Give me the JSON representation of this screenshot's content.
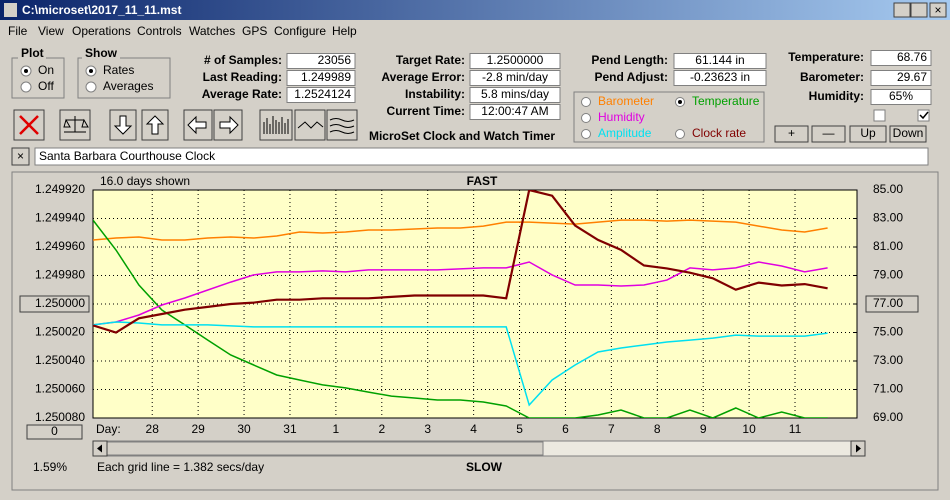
{
  "window": {
    "title": "C:\\microset\\2017_11_11.mst"
  },
  "menu": [
    "File",
    "View",
    "Operations",
    "Controls",
    "Watches",
    "GPS",
    "Configure",
    "Help"
  ],
  "plot_group": {
    "title": "Plot",
    "options": [
      "On",
      "Off"
    ]
  },
  "show_group": {
    "title": "Show",
    "options": [
      "Rates",
      "Averages"
    ]
  },
  "fields": [
    {
      "label": "# of Samples:",
      "value": "23056"
    },
    {
      "label": "Last Reading:",
      "value": "1.249989"
    },
    {
      "label": "Average Rate:",
      "value": "1.2524124"
    },
    {
      "label": "Target Rate:",
      "value": "1.2500000"
    },
    {
      "label": "Average Error:",
      "value": "-2.8 min/day"
    },
    {
      "label": "Instability:",
      "value": "5.8 mins/day"
    },
    {
      "label": "Current Time:",
      "value": "12:00:47 AM"
    },
    {
      "label": "Pend Length:",
      "value": "61.144 in"
    },
    {
      "label": "Pend Adjust:",
      "value": "-0.23623 in"
    },
    {
      "label": "Temperature:",
      "value": "68.76"
    },
    {
      "label": "Barometer:",
      "value": "29.67"
    },
    {
      "label": "Humidity:",
      "value": "65%"
    }
  ],
  "app_name": "MicroSet Clock and Watch Timer",
  "buttons": [
    "+",
    "—",
    "Up",
    "Down"
  ],
  "clock_name": "Santa Barbara Courthouse Clock",
  "chart_data": {
    "type": "line",
    "days_shown": "16.0 days shown",
    "top_label": "FAST",
    "bottom_label": "SLOW",
    "x_label": "Day:",
    "grid_note": "Each grid line = 1.382 secs/day",
    "zoom_button": "0",
    "percent": "1.59%",
    "grid": true,
    "xlim": [
      0,
      16.64
    ],
    "xticks": [
      {
        "value": 1.29,
        "label": "28"
      },
      {
        "value": 2.29,
        "label": "29"
      },
      {
        "value": 3.29,
        "label": "30"
      },
      {
        "value": 4.29,
        "label": "31"
      },
      {
        "value": 5.29,
        "label": "1"
      },
      {
        "value": 6.29,
        "label": "2"
      },
      {
        "value": 7.29,
        "label": "3"
      },
      {
        "value": 8.29,
        "label": "4"
      },
      {
        "value": 9.29,
        "label": "5"
      },
      {
        "value": 10.29,
        "label": "6"
      },
      {
        "value": 11.29,
        "label": "7"
      },
      {
        "value": 12.29,
        "label": "8"
      },
      {
        "value": 13.29,
        "label": "9"
      },
      {
        "value": 14.29,
        "label": "10"
      },
      {
        "value": 15.29,
        "label": "11"
      }
    ],
    "ylim": [
      1.25008,
      1.24992
    ],
    "yticks": [
      {
        "value": 1.24992,
        "label": "1.249920"
      },
      {
        "value": 1.24994,
        "label": "1.249940"
      },
      {
        "value": 1.24996,
        "label": "1.249960"
      },
      {
        "value": 1.24998,
        "label": "1.249980"
      },
      {
        "value": 1.25,
        "label": "1.250000"
      },
      {
        "value": 1.25002,
        "label": "1.250020"
      },
      {
        "value": 1.25004,
        "label": "1.250040"
      },
      {
        "value": 1.25006,
        "label": "1.250060"
      },
      {
        "value": 1.25008,
        "label": "1.250080"
      }
    ],
    "y2lim": [
      69,
      85
    ],
    "y2ticks": [
      {
        "value": 85,
        "label": "85.00"
      },
      {
        "value": 83,
        "label": "83.00"
      },
      {
        "value": 81,
        "label": "81.00"
      },
      {
        "value": 79,
        "label": "79.00"
      },
      {
        "value": 77,
        "label": "77.00"
      },
      {
        "value": 75,
        "label": "75.00"
      },
      {
        "value": 73,
        "label": "73.00"
      },
      {
        "value": 71,
        "label": "71.00"
      },
      {
        "value": 69,
        "label": "69.00"
      }
    ],
    "x": [
      0,
      0.5,
      1,
      1.5,
      2,
      2.5,
      3,
      3.5,
      4,
      4.5,
      5,
      5.5,
      6,
      6.5,
      7,
      7.5,
      8,
      8.5,
      9,
      9.5,
      10,
      10.5,
      11,
      11.5,
      12,
      12.5,
      13,
      13.5,
      14,
      14.5,
      15,
      15.5,
      16
    ],
    "series": [
      {
        "name": "Barometer",
        "color": "#ff8000",
        "axis": "y2",
        "values": [
          81.49,
          81.63,
          81.7,
          81.49,
          81.49,
          81.63,
          81.7,
          81.63,
          81.77,
          82.05,
          81.98,
          82.05,
          82.19,
          82.19,
          82.26,
          82.33,
          82.33,
          82.47,
          82.75,
          82.75,
          82.68,
          82.61,
          82.75,
          82.89,
          82.89,
          82.82,
          82.89,
          82.82,
          82.75,
          82.47,
          82.19,
          82.05,
          82.33
        ]
      },
      {
        "name": "Temperature",
        "color": "#00a000",
        "axis": "y2",
        "values": [
          82.89,
          80.79,
          78.33,
          76.58,
          75.53,
          74.47,
          73.42,
          72.72,
          72.02,
          71.67,
          71.32,
          71.11,
          70.82,
          70.54,
          70.4,
          70.26,
          70.26,
          70.12,
          69.84,
          69.0,
          69.0,
          69.0,
          69.21,
          69.56,
          69.0,
          69.0,
          69.56,
          69.0,
          69.7,
          69.0,
          69.42,
          69.0,
          69.0
        ]
      },
      {
        "name": "Humidity",
        "color": "#e000e0",
        "axis": "y2",
        "values": [
          75.53,
          75.74,
          76.23,
          76.93,
          77.42,
          77.98,
          78.54,
          79.04,
          79.25,
          79.25,
          79.32,
          79.25,
          79.39,
          79.39,
          79.39,
          79.39,
          79.46,
          79.53,
          79.53,
          79.95,
          79.04,
          78.33,
          78.33,
          78.26,
          78.33,
          78.68,
          79.53,
          79.39,
          79.53,
          79.95,
          79.67,
          79.25,
          79.53
        ]
      },
      {
        "name": "Amplitude",
        "color": "#00e0f0",
        "axis": "y2",
        "values": [
          75.53,
          75.74,
          75.67,
          75.53,
          75.53,
          75.53,
          75.46,
          75.39,
          75.39,
          75.39,
          75.39,
          75.39,
          75.39,
          75.39,
          75.39,
          75.39,
          75.39,
          75.39,
          75.39,
          69.91,
          71.67,
          72.72,
          73.63,
          73.91,
          74.12,
          74.33,
          74.47,
          74.61,
          74.82,
          74.75,
          74.75,
          74.75,
          74.96
        ]
      },
      {
        "name": "Clock rate",
        "color": "#800000",
        "axis": "y",
        "values": [
          1.250015,
          1.25002,
          1.25001,
          1.250007,
          1.250004,
          1.250002,
          1.25,
          1.249999,
          1.249997,
          1.249997,
          1.249996,
          1.249996,
          1.249996,
          1.249995,
          1.249994,
          1.249994,
          1.249994,
          1.249994,
          1.249996,
          1.24992,
          1.249924,
          1.249945,
          1.249955,
          1.249962,
          1.249973,
          1.249975,
          1.249978,
          1.249982,
          1.24999,
          1.249985,
          1.249987,
          1.249986,
          1.249989
        ]
      }
    ]
  }
}
